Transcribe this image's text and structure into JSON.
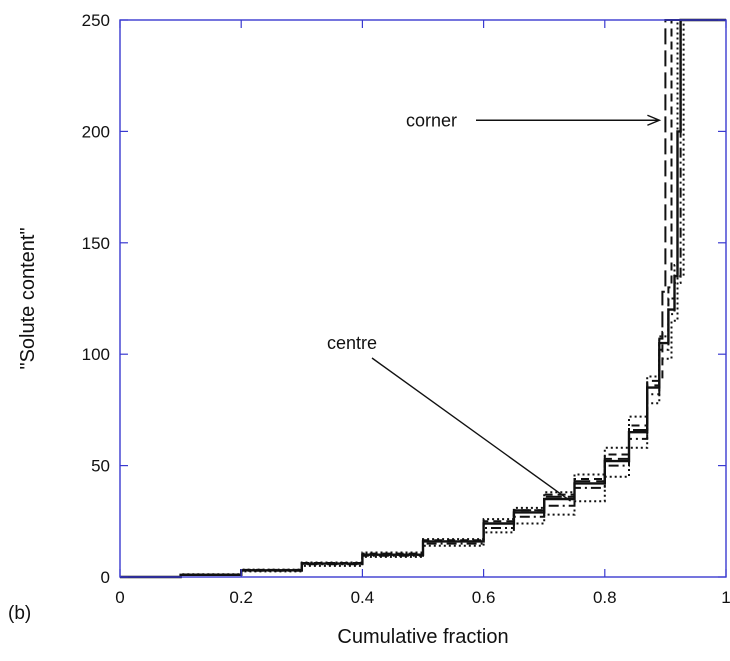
{
  "panel_label": "(b)",
  "colors": {
    "frame": "#3a3ad0",
    "ink": "#111111"
  },
  "chart_data": {
    "type": "line",
    "title": "",
    "xlabel": "Cumulative fraction",
    "ylabel": "\"Solute content\"",
    "xlim": [
      0,
      1
    ],
    "ylim": [
      0,
      250
    ],
    "xticks": [
      "0",
      "0.2",
      "0.4",
      "0.6",
      "0.8",
      "1"
    ],
    "yticks": [
      "0",
      "50",
      "100",
      "150",
      "200",
      "250"
    ],
    "grid": false,
    "annotations": [
      {
        "text": "corner",
        "target": [
          0.9,
          205
        ]
      },
      {
        "text": "centre",
        "target": [
          0.76,
          35
        ]
      }
    ],
    "series": [
      {
        "style": "solid",
        "points": [
          [
            0,
            0
          ],
          [
            0.1,
            1
          ],
          [
            0.2,
            3
          ],
          [
            0.3,
            6
          ],
          [
            0.4,
            10
          ],
          [
            0.5,
            16
          ],
          [
            0.6,
            24
          ],
          [
            0.65,
            29
          ],
          [
            0.7,
            35
          ],
          [
            0.75,
            42
          ],
          [
            0.8,
            52
          ],
          [
            0.84,
            65
          ],
          [
            0.87,
            85
          ],
          [
            0.89,
            105
          ],
          [
            0.905,
            120
          ],
          [
            0.915,
            135
          ],
          [
            0.92,
            200
          ],
          [
            0.925,
            250
          ],
          [
            1,
            250
          ]
        ]
      },
      {
        "style": "dotted",
        "points": [
          [
            0,
            0
          ],
          [
            0.1,
            1
          ],
          [
            0.2,
            2.5
          ],
          [
            0.3,
            5
          ],
          [
            0.4,
            9
          ],
          [
            0.5,
            14
          ],
          [
            0.6,
            20
          ],
          [
            0.65,
            24
          ],
          [
            0.7,
            28
          ],
          [
            0.75,
            34
          ],
          [
            0.8,
            45
          ],
          [
            0.84,
            58
          ],
          [
            0.87,
            78
          ],
          [
            0.89,
            98
          ],
          [
            0.91,
            115
          ],
          [
            0.92,
            135
          ],
          [
            0.93,
            250
          ],
          [
            1,
            250
          ]
        ]
      },
      {
        "style": "dotted",
        "points": [
          [
            0,
            0
          ],
          [
            0.1,
            1.2
          ],
          [
            0.2,
            3.3
          ],
          [
            0.3,
            6.5
          ],
          [
            0.4,
            11
          ],
          [
            0.5,
            17
          ],
          [
            0.6,
            26
          ],
          [
            0.65,
            31
          ],
          [
            0.7,
            38
          ],
          [
            0.75,
            46
          ],
          [
            0.8,
            58
          ],
          [
            0.84,
            72
          ],
          [
            0.87,
            90
          ],
          [
            0.89,
            108
          ],
          [
            0.905,
            125
          ],
          [
            0.915,
            140
          ],
          [
            0.92,
            250
          ],
          [
            1,
            250
          ]
        ]
      },
      {
        "style": "dashed",
        "points": [
          [
            0,
            0
          ],
          [
            0.1,
            1.1
          ],
          [
            0.2,
            3.2
          ],
          [
            0.3,
            6.3
          ],
          [
            0.4,
            10.5
          ],
          [
            0.5,
            16.5
          ],
          [
            0.6,
            25
          ],
          [
            0.65,
            30
          ],
          [
            0.7,
            37
          ],
          [
            0.75,
            44
          ],
          [
            0.8,
            55
          ],
          [
            0.84,
            68
          ],
          [
            0.87,
            88
          ],
          [
            0.895,
            110
          ],
          [
            0.905,
            130
          ],
          [
            0.91,
            250
          ],
          [
            1,
            250
          ]
        ]
      },
      {
        "style": "dashdot",
        "points": [
          [
            0,
            0
          ],
          [
            0.1,
            0.9
          ],
          [
            0.2,
            2.8
          ],
          [
            0.3,
            5.7
          ],
          [
            0.4,
            9.5
          ],
          [
            0.5,
            15
          ],
          [
            0.6,
            22
          ],
          [
            0.65,
            27
          ],
          [
            0.7,
            32
          ],
          [
            0.75,
            40
          ],
          [
            0.8,
            50
          ],
          [
            0.84,
            62
          ],
          [
            0.87,
            82
          ],
          [
            0.89,
            102
          ],
          [
            0.905,
            118
          ],
          [
            0.915,
            132
          ],
          [
            0.925,
            250
          ],
          [
            1,
            250
          ]
        ]
      },
      {
        "style": "longdash",
        "points": [
          [
            0,
            0
          ],
          [
            0.1,
            1
          ],
          [
            0.2,
            3
          ],
          [
            0.3,
            6
          ],
          [
            0.4,
            10
          ],
          [
            0.5,
            16
          ],
          [
            0.6,
            24
          ],
          [
            0.65,
            30
          ],
          [
            0.7,
            36
          ],
          [
            0.75,
            43
          ],
          [
            0.8,
            53
          ],
          [
            0.84,
            66
          ],
          [
            0.87,
            86
          ],
          [
            0.89,
            107
          ],
          [
            0.895,
            128
          ],
          [
            0.9,
            250
          ],
          [
            1,
            250
          ]
        ]
      }
    ]
  }
}
